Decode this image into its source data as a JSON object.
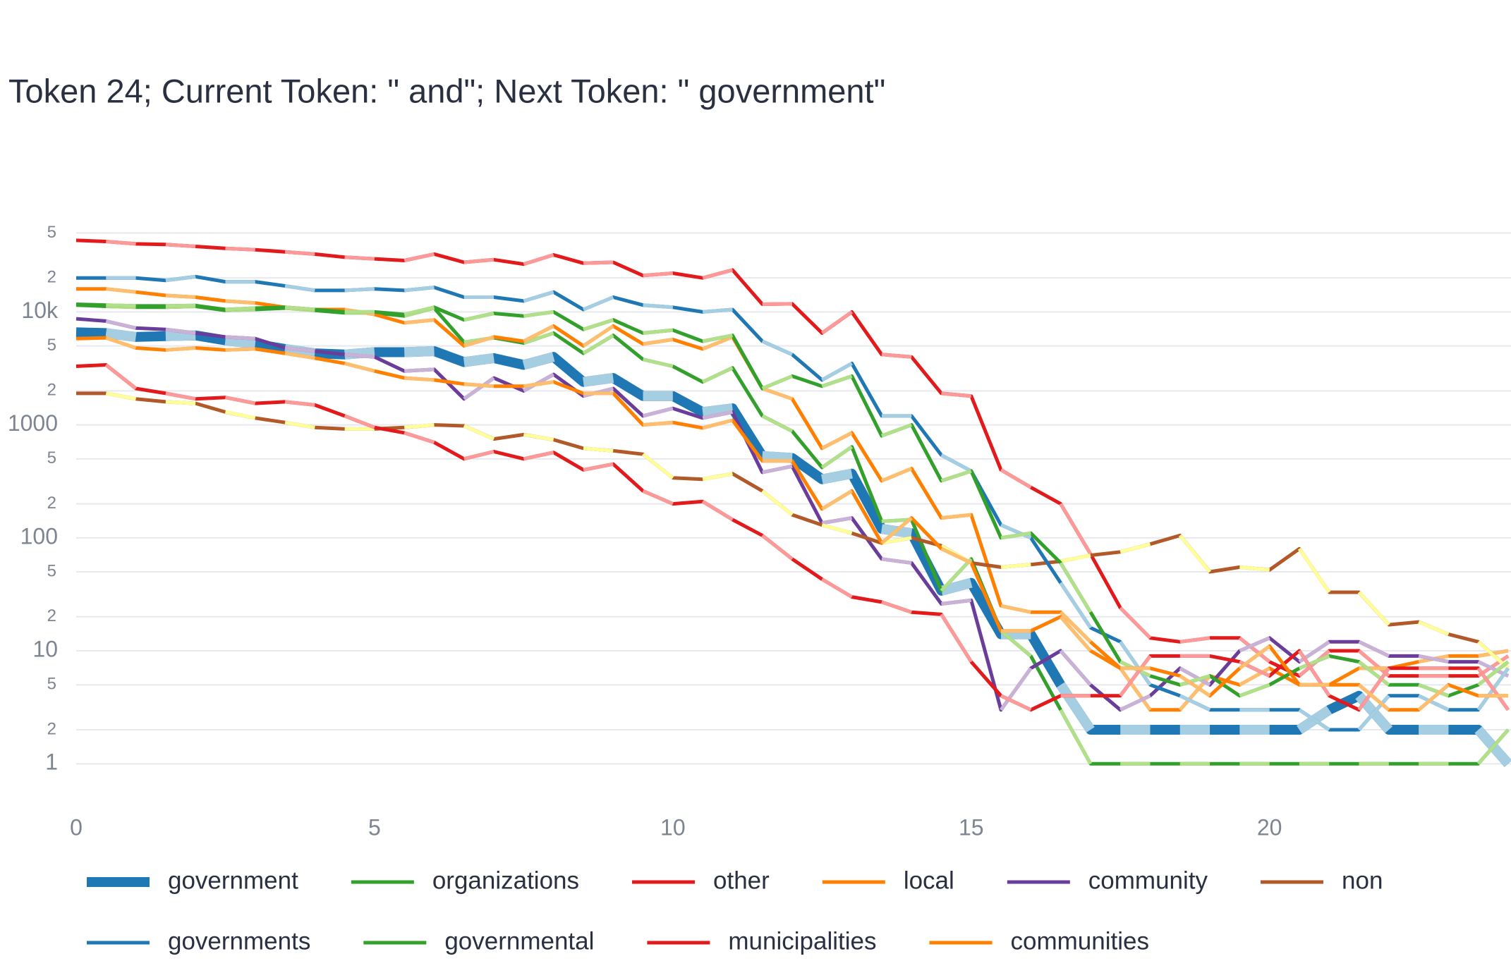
{
  "chart_data": {
    "type": "line",
    "title": "Token 24; Current Token: \" and\"; Next Token: \" government\"",
    "log_y": true,
    "grid": true,
    "x": [
      0,
      0.5,
      1,
      1.5,
      2,
      2.5,
      3,
      3.5,
      4,
      4.5,
      5,
      5.5,
      6,
      6.5,
      7,
      7.5,
      8,
      8.5,
      9,
      9.5,
      10,
      10.5,
      11,
      11.5,
      12,
      12.5,
      13,
      13.5,
      14,
      14.5,
      15,
      15.5,
      16,
      16.5,
      17,
      17.5,
      18,
      18.5,
      19,
      19.5,
      20,
      20.5,
      21,
      21.5,
      22,
      22.5,
      23,
      23.5,
      24
    ],
    "xlim": [
      0,
      24
    ],
    "xticks": [
      0,
      5,
      10,
      15,
      20
    ],
    "ylim": [
      0.4,
      70000
    ],
    "yticks": [
      1,
      2,
      5,
      10,
      {
        "value": 20,
        "label": "2"
      },
      {
        "value": 50,
        "label": "5"
      },
      100,
      {
        "value": 200,
        "label": "2"
      },
      {
        "value": 500,
        "label": "5"
      },
      1000,
      {
        "value": 2000,
        "label": "2"
      },
      {
        "value": 5000,
        "label": "5"
      },
      {
        "value": 10000,
        "label": "10k"
      },
      {
        "value": 20000,
        "label": "2"
      },
      {
        "value": 50000,
        "label": "5"
      }
    ],
    "series": [
      {
        "name": "government",
        "color": "#1f78b4",
        "alt_color": "#a6cee3",
        "values": [
          6600,
          6500,
          6000,
          6100,
          6200,
          5600,
          5200,
          4700,
          4300,
          4200,
          4400,
          4400,
          4500,
          3600,
          3900,
          3400,
          4000,
          2400,
          2600,
          1800,
          1800,
          1300,
          1400,
          530,
          510,
          330,
          370,
          120,
          110,
          34,
          40,
          14,
          14,
          5,
          2,
          2,
          2,
          2,
          2,
          2,
          2,
          2,
          3,
          4,
          2,
          2,
          2,
          2,
          1
        ]
      },
      {
        "name": "organizations",
        "color": "#33a02c",
        "alt_color": "#b2df8a",
        "values": [
          11500,
          11200,
          11000,
          11000,
          11200,
          10300,
          10500,
          10800,
          10300,
          9800,
          9800,
          9200,
          10800,
          5400,
          5900,
          5300,
          6500,
          4300,
          6200,
          3800,
          3300,
          2400,
          3200,
          1200,
          880,
          420,
          640,
          140,
          145,
          34,
          65,
          15,
          9,
          3,
          1,
          1,
          1,
          1,
          1,
          1,
          1,
          1,
          1,
          1,
          1,
          1,
          1,
          1,
          2
        ]
      },
      {
        "name": "other",
        "color": "#e31a1c",
        "alt_color": "#fb9a99",
        "values": [
          43000,
          42000,
          40000,
          39500,
          38000,
          36500,
          35500,
          34000,
          32500,
          30500,
          29500,
          28500,
          32500,
          27500,
          29000,
          26500,
          32000,
          27000,
          27500,
          21000,
          22000,
          20000,
          23500,
          11700,
          11800,
          6500,
          10000,
          4200,
          4000,
          1900,
          1800,
          400,
          280,
          200,
          72,
          24,
          13,
          12,
          13,
          13,
          8,
          6,
          10,
          10,
          6,
          6,
          6,
          6,
          9
        ]
      },
      {
        "name": "local",
        "color": "#ff7f00",
        "alt_color": "#fdbf6f",
        "values": [
          16000,
          16000,
          15000,
          14000,
          13500,
          12500,
          12000,
          11000,
          10500,
          10500,
          9500,
          8000,
          8500,
          5000,
          6000,
          5500,
          7500,
          5000,
          7500,
          5200,
          5700,
          4700,
          6000,
          2100,
          1700,
          620,
          850,
          320,
          410,
          150,
          160,
          25,
          22,
          22,
          12,
          7,
          3,
          3,
          6,
          5,
          7,
          5,
          5,
          7,
          7,
          8,
          9,
          9,
          10
        ]
      },
      {
        "name": "community",
        "color": "#6a3d9a",
        "alt_color": "#cab2d6",
        "values": [
          8700,
          8300,
          7200,
          7000,
          6500,
          6000,
          5800,
          4800,
          4500,
          4200,
          4000,
          3000,
          3100,
          1700,
          2600,
          2000,
          2800,
          1800,
          2100,
          1200,
          1400,
          1150,
          1300,
          380,
          430,
          135,
          150,
          65,
          60,
          26,
          28,
          3,
          7,
          10,
          5,
          3,
          4,
          7,
          5,
          10,
          13,
          8,
          12,
          12,
          9,
          9,
          8,
          8,
          6
        ]
      },
      {
        "name": "non",
        "color": "#b15928",
        "alt_color": "#ffff99",
        "values": [
          1900,
          1900,
          1700,
          1600,
          1550,
          1300,
          1150,
          1050,
          950,
          920,
          920,
          950,
          1000,
          980,
          750,
          820,
          740,
          620,
          590,
          550,
          340,
          330,
          370,
          260,
          160,
          130,
          110,
          90,
          100,
          85,
          60,
          55,
          58,
          62,
          70,
          75,
          88,
          105,
          50,
          55,
          52,
          80,
          33,
          33,
          17,
          18,
          14,
          12,
          7
        ]
      },
      {
        "name": "governments",
        "color": "#1f78b4",
        "alt_color": "#a6cee3",
        "values": [
          20000,
          20000,
          20000,
          19000,
          20500,
          18500,
          18500,
          17000,
          15500,
          15500,
          16000,
          15500,
          16500,
          13500,
          13500,
          12500,
          15000,
          10500,
          13500,
          11500,
          11000,
          10000,
          10500,
          5500,
          4200,
          2500,
          3500,
          1200,
          1200,
          540,
          390,
          130,
          100,
          40,
          16,
          12,
          5,
          4,
          3,
          3,
          3,
          3,
          2,
          2,
          4,
          4,
          3,
          3,
          7
        ]
      },
      {
        "name": "governmental",
        "color": "#33a02c",
        "alt_color": "#b2df8a",
        "values": [
          11700,
          11500,
          11300,
          11300,
          11400,
          10500,
          10800,
          11000,
          10500,
          10000,
          10000,
          9500,
          11000,
          8500,
          9700,
          9200,
          10000,
          7000,
          8500,
          6500,
          6900,
          5500,
          6200,
          2100,
          2700,
          2200,
          2700,
          800,
          1000,
          320,
          390,
          100,
          110,
          60,
          22,
          8,
          6,
          5,
          6,
          4,
          5,
          7,
          9,
          8,
          5,
          5,
          4,
          5,
          8
        ]
      },
      {
        "name": "municipalities",
        "color": "#e31a1c",
        "alt_color": "#fb9a99",
        "values": [
          3300,
          3400,
          2100,
          1900,
          1700,
          1750,
          1550,
          1600,
          1500,
          1200,
          950,
          850,
          700,
          500,
          580,
          500,
          570,
          400,
          450,
          260,
          200,
          210,
          145,
          105,
          65,
          43,
          30,
          27,
          22,
          21,
          8,
          4,
          3,
          4,
          4,
          4,
          9,
          9,
          9,
          8,
          6,
          10,
          4,
          3,
          7,
          7,
          7,
          7,
          3
        ]
      },
      {
        "name": "communities",
        "color": "#ff7f00",
        "alt_color": "#fdbf6f",
        "values": [
          5800,
          5900,
          4800,
          4600,
          4800,
          4600,
          4700,
          4300,
          3900,
          3500,
          3000,
          2600,
          2500,
          2300,
          2200,
          2200,
          2400,
          1900,
          1900,
          1000,
          1050,
          940,
          1100,
          480,
          480,
          180,
          260,
          90,
          150,
          80,
          60,
          15,
          15,
          20,
          10,
          7,
          7,
          6,
          4,
          7,
          11,
          5,
          5,
          5,
          3,
          3,
          5,
          4,
          4
        ]
      }
    ]
  }
}
